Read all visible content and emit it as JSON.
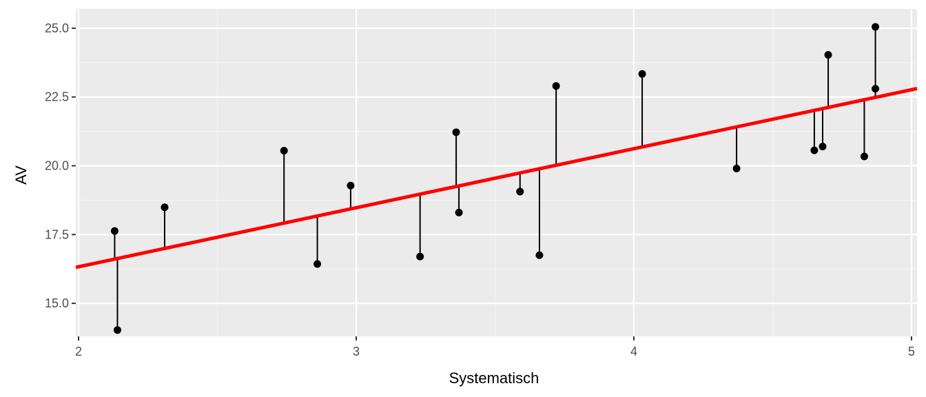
{
  "chart_data": {
    "type": "scatter",
    "xlabel": "Systematisch",
    "ylabel": "AV",
    "xlim": [
      1.99,
      5.02
    ],
    "ylim": [
      13.8,
      25.7
    ],
    "x_ticks": [
      2,
      3,
      4,
      5
    ],
    "x_tick_labels": [
      "2",
      "3",
      "4",
      "5"
    ],
    "y_ticks": [
      15.0,
      17.5,
      20.0,
      22.5,
      25.0
    ],
    "y_tick_labels": [
      "15.0",
      "17.5",
      "20.0",
      "22.5",
      "25.0"
    ],
    "grid": true,
    "regression_line": {
      "intercept": 12.04,
      "slope": 2.145,
      "color": "#ff0000"
    },
    "points": [
      {
        "x": 2.13,
        "y": 17.63
      },
      {
        "x": 2.14,
        "y": 14.03
      },
      {
        "x": 2.31,
        "y": 18.49
      },
      {
        "x": 2.74,
        "y": 20.55
      },
      {
        "x": 2.86,
        "y": 16.43
      },
      {
        "x": 2.98,
        "y": 19.28
      },
      {
        "x": 3.23,
        "y": 16.7
      },
      {
        "x": 3.36,
        "y": 21.22
      },
      {
        "x": 3.37,
        "y": 18.3
      },
      {
        "x": 3.59,
        "y": 19.06
      },
      {
        "x": 3.66,
        "y": 16.75
      },
      {
        "x": 3.72,
        "y": 22.9
      },
      {
        "x": 4.03,
        "y": 23.34
      },
      {
        "x": 4.37,
        "y": 19.9
      },
      {
        "x": 4.65,
        "y": 20.56
      },
      {
        "x": 4.68,
        "y": 20.7
      },
      {
        "x": 4.7,
        "y": 24.03
      },
      {
        "x": 4.83,
        "y": 20.34
      },
      {
        "x": 4.87,
        "y": 22.8
      },
      {
        "x": 4.87,
        "y": 25.05
      }
    ],
    "colors": {
      "panel_background": "#ebebeb",
      "grid_major": "#ffffff",
      "grid_minor": "#f5f5f5",
      "point": "#000000",
      "residual": "#000000",
      "fit_line": "#ff0000"
    }
  }
}
